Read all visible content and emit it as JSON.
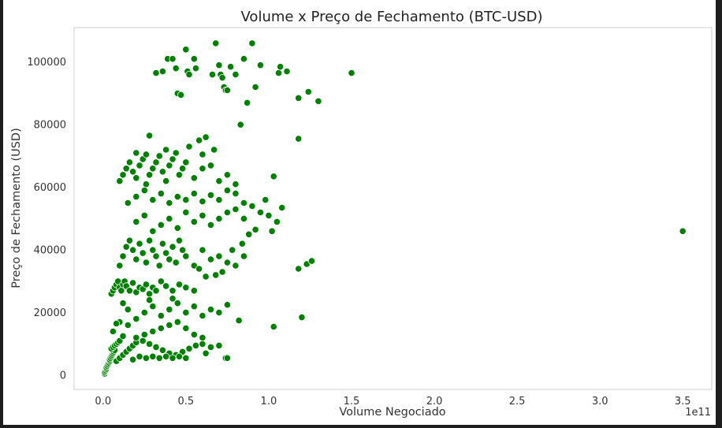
{
  "chart_data": {
    "type": "scatter",
    "title": "Volume x Preço de Fechamento (BTC-USD)",
    "xlabel": "Volume Negociado",
    "ylabel": "Preço de Fechamento (USD)",
    "x_offset_text": "1e11",
    "x_unit_note": "x values in units of 1e11",
    "xlim": [
      -0.175,
      3.675
    ],
    "ylim": [
      -4500,
      111000
    ],
    "xticks": [
      "0.0",
      "0.5",
      "1.0",
      "1.5",
      "2.0",
      "2.5",
      "3.0",
      "3.5"
    ],
    "yticks": [
      "0",
      "20000",
      "40000",
      "60000",
      "80000",
      "100000"
    ],
    "grid": false,
    "legend": "none",
    "point_color": "#008000",
    "point_edge_color": "#ffffff",
    "series": [
      {
        "points": [
          [
            0.01,
            500
          ],
          [
            0.01,
            1000
          ],
          [
            0.015,
            1500
          ],
          [
            0.02,
            2000
          ],
          [
            0.02,
            2500
          ],
          [
            0.025,
            3000
          ],
          [
            0.03,
            3500
          ],
          [
            0.035,
            4000
          ],
          [
            0.04,
            4500
          ],
          [
            0.04,
            5000
          ],
          [
            0.045,
            5500
          ],
          [
            0.05,
            6000
          ],
          [
            0.055,
            6500
          ],
          [
            0.06,
            7000
          ],
          [
            0.065,
            7500
          ],
          [
            0.07,
            8000
          ],
          [
            0.05,
            8500
          ],
          [
            0.06,
            9000
          ],
          [
            0.07,
            9500
          ],
          [
            0.08,
            10000
          ],
          [
            0.09,
            10500
          ],
          [
            0.1,
            11000
          ],
          [
            0.08,
            4500
          ],
          [
            0.1,
            5500
          ],
          [
            0.12,
            6500
          ],
          [
            0.14,
            7500
          ],
          [
            0.16,
            8500
          ],
          [
            0.18,
            9500
          ],
          [
            0.2,
            10500
          ],
          [
            0.24,
            11000
          ],
          [
            0.28,
            10000
          ],
          [
            0.32,
            9000
          ],
          [
            0.36,
            8000
          ],
          [
            0.4,
            7000
          ],
          [
            0.44,
            6500
          ],
          [
            0.48,
            7500
          ],
          [
            0.52,
            8500
          ],
          [
            0.56,
            9500
          ],
          [
            0.6,
            10000
          ],
          [
            0.65,
            9000
          ],
          [
            0.7,
            9500
          ],
          [
            0.62,
            7000
          ],
          [
            0.74,
            5500
          ],
          [
            0.18,
            5000
          ],
          [
            0.22,
            6000
          ],
          [
            0.26,
            5500
          ],
          [
            0.3,
            6000
          ],
          [
            0.34,
            5500
          ],
          [
            0.38,
            6000
          ],
          [
            0.42,
            5500
          ],
          [
            0.46,
            6000
          ],
          [
            0.5,
            5500
          ],
          [
            0.2,
            12000
          ],
          [
            0.25,
            13000
          ],
          [
            0.3,
            14000
          ],
          [
            0.35,
            15000
          ],
          [
            0.4,
            16000
          ],
          [
            0.45,
            17000
          ],
          [
            0.5,
            15000
          ],
          [
            0.55,
            13000
          ],
          [
            0.6,
            12000
          ],
          [
            0.1,
            17000
          ],
          [
            0.15,
            16000
          ],
          [
            0.06,
            14000
          ],
          [
            0.08,
            16500
          ],
          [
            0.12,
            12500
          ],
          [
            0.05,
            26000
          ],
          [
            0.06,
            27000
          ],
          [
            0.07,
            28000
          ],
          [
            0.08,
            29000
          ],
          [
            0.09,
            30000
          ],
          [
            0.1,
            28000
          ],
          [
            0.11,
            27000
          ],
          [
            0.12,
            29000
          ],
          [
            0.13,
            30000
          ],
          [
            0.14,
            28500
          ],
          [
            0.16,
            27000
          ],
          [
            0.18,
            29500
          ],
          [
            0.2,
            26500
          ],
          [
            0.22,
            28000
          ],
          [
            0.24,
            27500
          ],
          [
            0.26,
            29000
          ],
          [
            0.28,
            26000
          ],
          [
            0.3,
            28000
          ],
          [
            0.32,
            27000
          ],
          [
            0.35,
            30000
          ],
          [
            0.38,
            28500
          ],
          [
            0.42,
            27000
          ],
          [
            0.46,
            29000
          ],
          [
            0.5,
            28000
          ],
          [
            0.55,
            27000
          ],
          [
            0.2,
            18000
          ],
          [
            0.25,
            20000
          ],
          [
            0.3,
            22000
          ],
          [
            0.35,
            19000
          ],
          [
            0.4,
            21000
          ],
          [
            0.45,
            23000
          ],
          [
            0.5,
            20000
          ],
          [
            0.55,
            22000
          ],
          [
            0.6,
            19000
          ],
          [
            0.65,
            21000
          ],
          [
            0.7,
            20000
          ],
          [
            0.75,
            22500
          ],
          [
            0.15,
            21000
          ],
          [
            0.12,
            23000
          ],
          [
            0.28,
            24000
          ],
          [
            0.42,
            24500
          ],
          [
            0.1,
            35000
          ],
          [
            0.12,
            38000
          ],
          [
            0.14,
            41000
          ],
          [
            0.16,
            43000
          ],
          [
            0.18,
            40000
          ],
          [
            0.2,
            37000
          ],
          [
            0.22,
            42000
          ],
          [
            0.24,
            39000
          ],
          [
            0.26,
            36000
          ],
          [
            0.28,
            43000
          ],
          [
            0.3,
            40000
          ],
          [
            0.32,
            38000
          ],
          [
            0.34,
            35000
          ],
          [
            0.36,
            42000
          ],
          [
            0.38,
            39000
          ],
          [
            0.4,
            37000
          ],
          [
            0.42,
            41000
          ],
          [
            0.44,
            36000
          ],
          [
            0.46,
            43000
          ],
          [
            0.48,
            40000
          ],
          [
            0.5,
            38000
          ],
          [
            0.55,
            35000
          ],
          [
            0.6,
            40000
          ],
          [
            0.65,
            37000
          ],
          [
            0.7,
            38000
          ],
          [
            0.75,
            36000
          ],
          [
            0.8,
            35000
          ],
          [
            0.85,
            38000
          ],
          [
            0.3,
            46000
          ],
          [
            0.35,
            48000
          ],
          [
            0.4,
            50000
          ],
          [
            0.45,
            47000
          ],
          [
            0.5,
            52000
          ],
          [
            0.55,
            49000
          ],
          [
            0.6,
            51000
          ],
          [
            0.65,
            48000
          ],
          [
            0.7,
            50000
          ],
          [
            0.25,
            51000
          ],
          [
            0.2,
            49000
          ],
          [
            0.75,
            52000
          ],
          [
            0.8,
            53000
          ],
          [
            0.85,
            50000
          ],
          [
            0.15,
            55000
          ],
          [
            0.2,
            57000
          ],
          [
            0.25,
            59000
          ],
          [
            0.3,
            56000
          ],
          [
            0.35,
            58000
          ],
          [
            0.4,
            55000
          ],
          [
            0.45,
            57000
          ],
          [
            0.5,
            56000
          ],
          [
            0.55,
            58000
          ],
          [
            0.6,
            55500
          ],
          [
            0.65,
            57500
          ],
          [
            0.7,
            56000
          ],
          [
            0.75,
            59000
          ],
          [
            0.8,
            58000
          ],
          [
            0.85,
            55000
          ],
          [
            0.9,
            54000
          ],
          [
            0.95,
            52000
          ],
          [
            1.0,
            51000
          ],
          [
            1.05,
            49000
          ],
          [
            1.08,
            53500
          ],
          [
            0.98,
            56000
          ],
          [
            1.02,
            46000
          ],
          [
            0.92,
            46500
          ],
          [
            0.88,
            45000
          ],
          [
            0.84,
            42000
          ],
          [
            0.78,
            40000
          ],
          [
            0.72,
            33000
          ],
          [
            0.68,
            32000
          ],
          [
            0.62,
            31500
          ],
          [
            0.58,
            34000
          ],
          [
            0.1,
            62000
          ],
          [
            0.12,
            64000
          ],
          [
            0.14,
            66000
          ],
          [
            0.16,
            68000
          ],
          [
            0.18,
            65000
          ],
          [
            0.2,
            63000
          ],
          [
            0.22,
            67000
          ],
          [
            0.24,
            69000
          ],
          [
            0.26,
            61000
          ],
          [
            0.28,
            64000
          ],
          [
            0.3,
            66000
          ],
          [
            0.32,
            68000
          ],
          [
            0.34,
            70000
          ],
          [
            0.36,
            65000
          ],
          [
            0.38,
            62000
          ],
          [
            0.4,
            67000
          ],
          [
            0.42,
            69000
          ],
          [
            0.44,
            71000
          ],
          [
            0.46,
            64000
          ],
          [
            0.48,
            66000
          ],
          [
            0.5,
            68000
          ],
          [
            0.55,
            63000
          ],
          [
            0.6,
            66000
          ],
          [
            0.65,
            67000
          ],
          [
            0.7,
            62000
          ],
          [
            0.75,
            64000
          ],
          [
            0.8,
            61000
          ],
          [
            0.2,
            71000
          ],
          [
            0.26,
            70500
          ],
          [
            0.38,
            72000
          ],
          [
            0.52,
            73000
          ],
          [
            0.58,
            75000
          ],
          [
            0.62,
            76000
          ],
          [
            0.28,
            76500
          ],
          [
            0.6,
            70500
          ],
          [
            0.67,
            72000
          ],
          [
            0.32,
            96500
          ],
          [
            0.36,
            97000
          ],
          [
            0.39,
            101000
          ],
          [
            0.42,
            101000
          ],
          [
            0.44,
            98000
          ],
          [
            0.45,
            90000
          ],
          [
            0.47,
            89500
          ],
          [
            0.5,
            104000
          ],
          [
            0.51,
            97000
          ],
          [
            0.52,
            96000
          ],
          [
            0.55,
            101000
          ],
          [
            0.56,
            98000
          ],
          [
            0.66,
            96000
          ],
          [
            0.68,
            106000
          ],
          [
            0.7,
            99000
          ],
          [
            0.71,
            96000
          ],
          [
            0.72,
            95000
          ],
          [
            0.73,
            92000
          ],
          [
            0.74,
            91000
          ],
          [
            0.75,
            91000
          ],
          [
            0.77,
            98500
          ],
          [
            0.8,
            96000
          ],
          [
            0.83,
            80000
          ],
          [
            0.85,
            101000
          ],
          [
            0.87,
            87000
          ],
          [
            0.9,
            106000
          ],
          [
            0.92,
            92000
          ],
          [
            0.95,
            99000
          ],
          [
            1.06,
            96500
          ],
          [
            1.07,
            98500
          ],
          [
            1.11,
            97000
          ],
          [
            1.18,
            88500
          ],
          [
            1.24,
            90500
          ],
          [
            1.3,
            87500
          ],
          [
            1.5,
            96500
          ],
          [
            1.18,
            75500
          ],
          [
            1.03,
            63500
          ],
          [
            1.23,
            35500
          ],
          [
            1.26,
            36500
          ],
          [
            1.18,
            34000
          ],
          [
            1.2,
            18500
          ],
          [
            1.03,
            15500
          ],
          [
            0.82,
            17500
          ],
          [
            0.75,
            5500
          ],
          [
            3.5,
            46000
          ]
        ]
      }
    ]
  }
}
